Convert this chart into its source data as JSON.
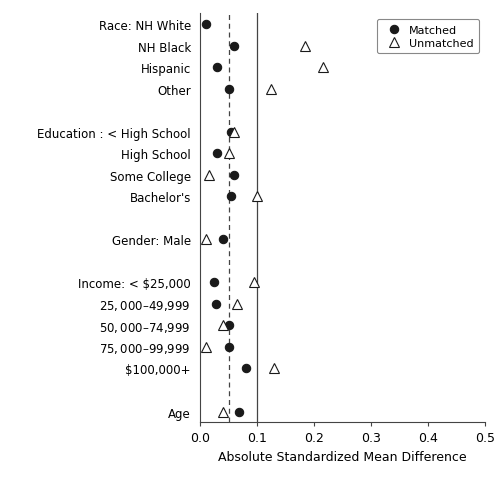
{
  "categories": [
    "Race: NH White",
    "NH Black",
    "Hispanic",
    "Other",
    "",
    "Education : < High School",
    "High School",
    "Some College",
    "Bachelor's",
    " ",
    "Gender: Male",
    "  ",
    "Income: < $25,000",
    "$25,000 – $49,999",
    "$50,000 – $74,999",
    "$75,000 – $99,999",
    "$100,000+",
    "   ",
    "Age"
  ],
  "matched": [
    0.01,
    0.06,
    0.03,
    0.05,
    null,
    0.055,
    0.03,
    0.06,
    0.055,
    null,
    0.04,
    null,
    0.025,
    0.028,
    0.05,
    0.05,
    0.08,
    null,
    0.068
  ],
  "unmatched": [
    null,
    0.185,
    0.215,
    0.125,
    null,
    0.06,
    0.05,
    0.015,
    0.1,
    null,
    0.01,
    null,
    0.095,
    0.065,
    0.04,
    0.01,
    0.13,
    null,
    0.04
  ],
  "xlabel": "Absolute Standardized Mean Difference",
  "xlim": [
    0.0,
    0.5
  ],
  "xticks": [
    0.0,
    0.1,
    0.2,
    0.3,
    0.4,
    0.5
  ],
  "xticklabels": [
    "0.0",
    "0.1",
    "0.2",
    "0.3",
    "0.4",
    "0.5"
  ],
  "vline_solid": 0.1,
  "vline_dashed": 0.05,
  "legend_matched_label": "Matched",
  "legend_unmatched_label": "Unmatched",
  "bg_color": "#ffffff",
  "marker_color_matched": "#1a1a1a",
  "marker_color_unmatched": "#ffffff",
  "marker_edge_color": "#1a1a1a",
  "marker_size": 6,
  "label_fontsize": 8.5,
  "tick_fontsize": 9,
  "xlabel_fontsize": 9
}
